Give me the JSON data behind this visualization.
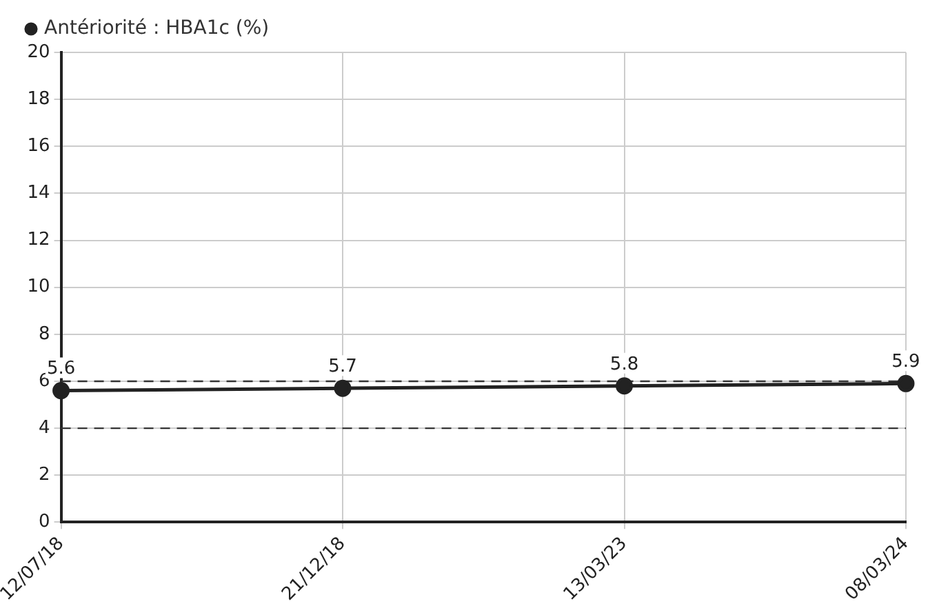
{
  "chart_data": {
    "type": "line",
    "categories": [
      "12/07/18",
      "21/12/18",
      "13/03/23",
      "08/03/24"
    ],
    "series": [
      {
        "name": "Antériorité : HBA1c (%)",
        "color": "#222222",
        "values": [
          5.6,
          5.7,
          5.8,
          5.9
        ]
      }
    ],
    "ylim": [
      0,
      20
    ],
    "yticks": [
      0,
      2,
      4,
      6,
      8,
      10,
      12,
      14,
      16,
      18,
      20
    ],
    "ref_lines": [
      {
        "axis": "y",
        "value": 6,
        "color": "#333333",
        "line_style": "dashed"
      },
      {
        "axis": "y",
        "value": 4,
        "color": "#333333",
        "line_style": "dashed"
      }
    ],
    "grid": true,
    "legend": "top left",
    "marker": "circle",
    "line_style": "solid",
    "data_labels": true
  }
}
